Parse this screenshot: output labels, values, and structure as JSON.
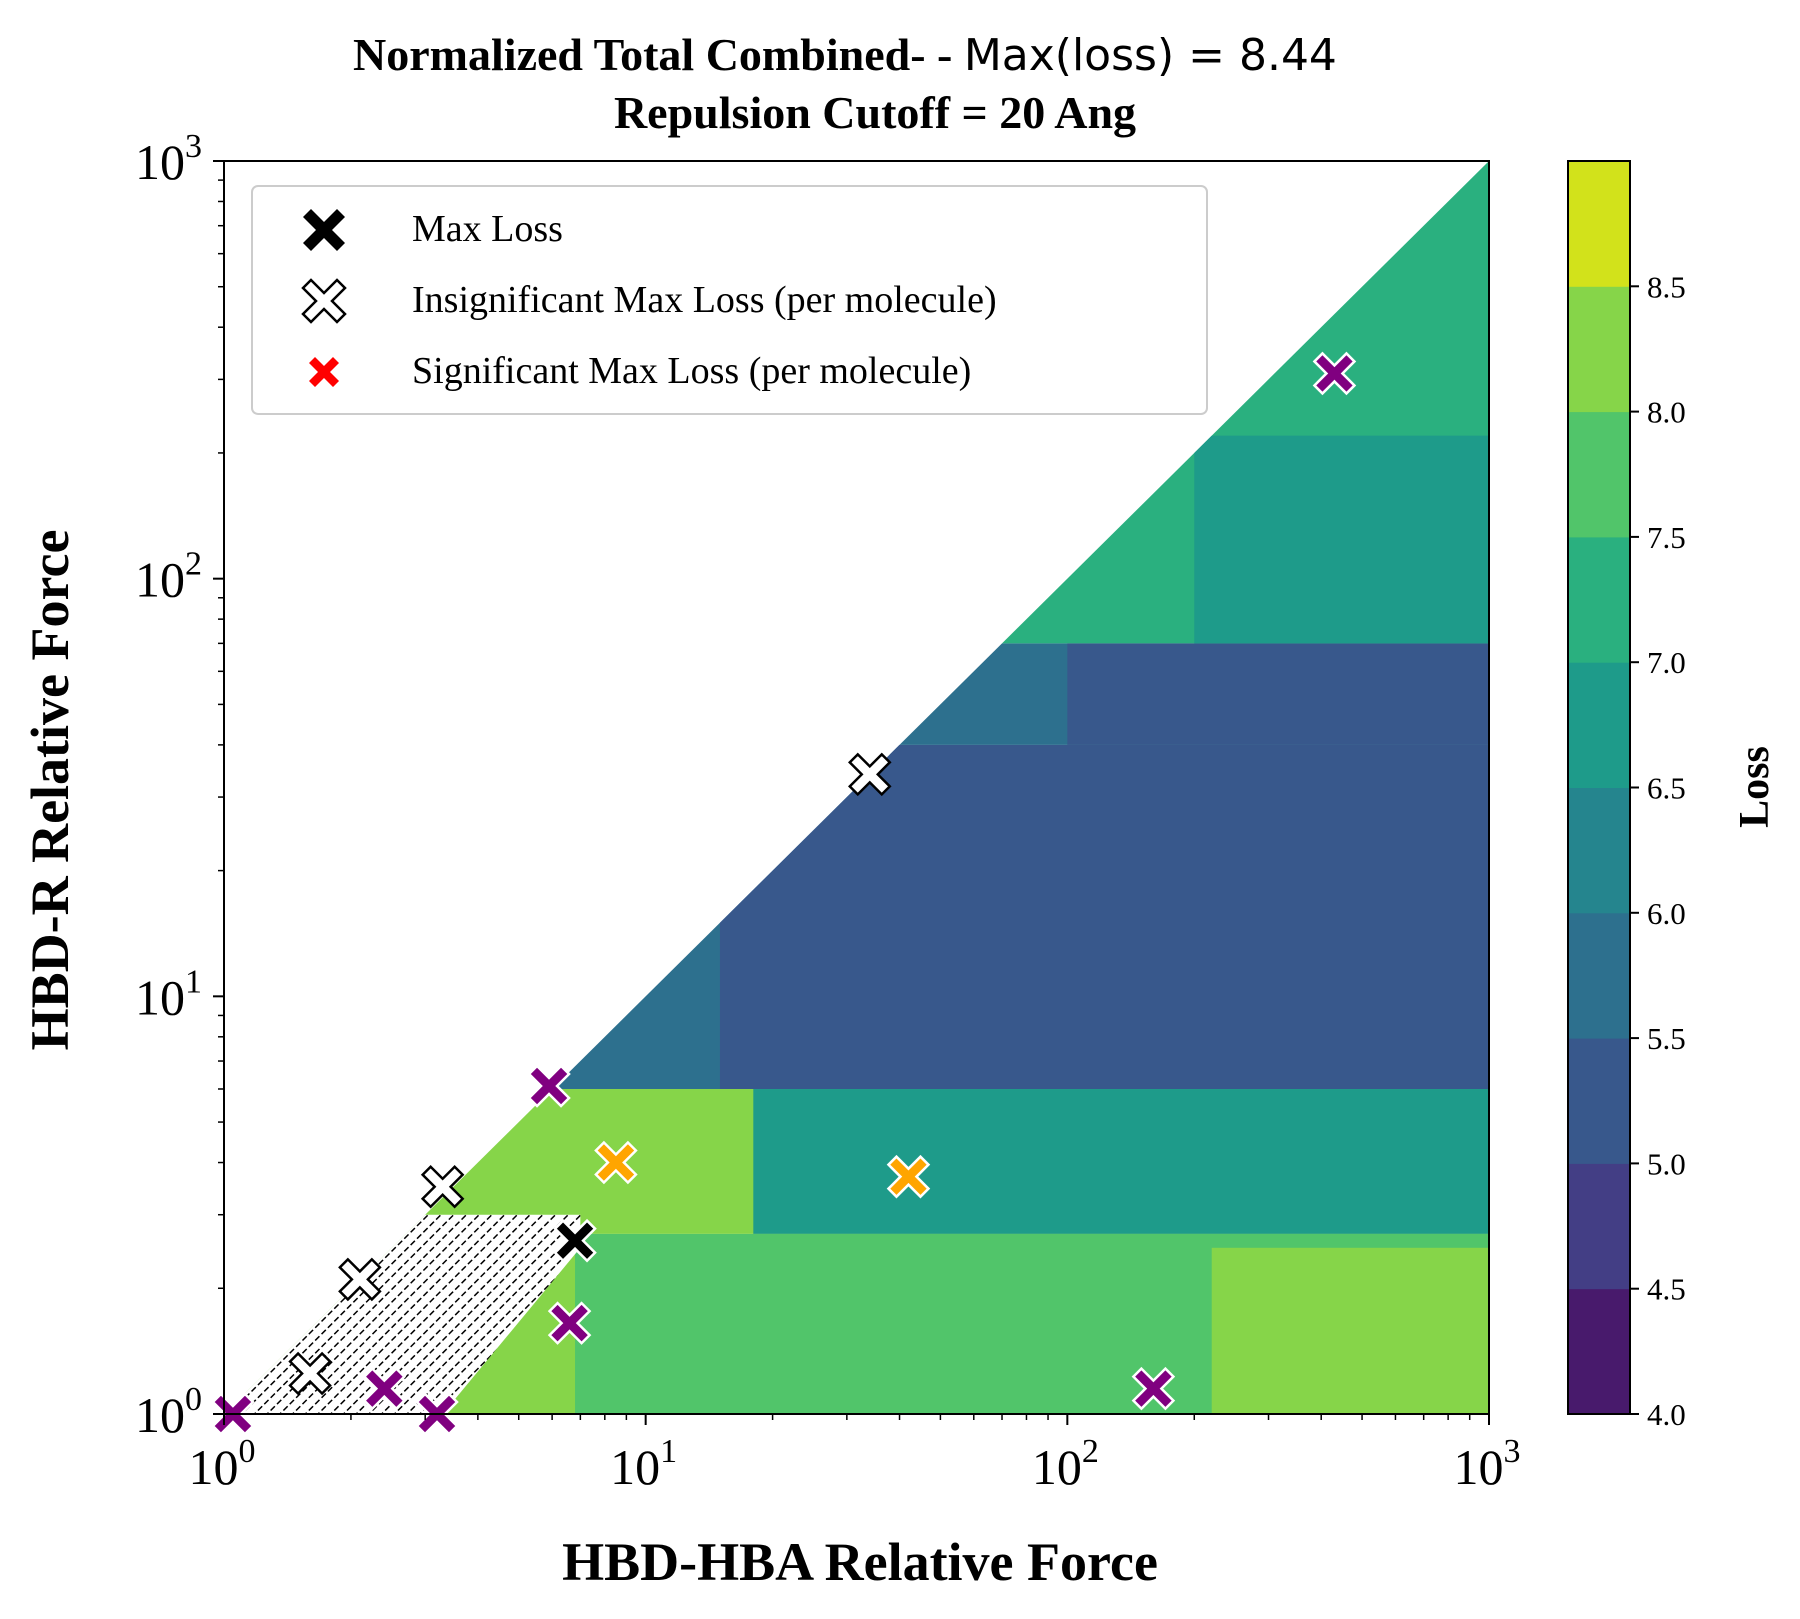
{
  "chart_data": {
    "type": "heatmap",
    "title": {
      "line1_text": "Normalized Total Combined- - ",
      "line1_math": "Max(loss) = 8.44",
      "line2": "Repulsion Cutoff = 20 Ang"
    },
    "xlabel": "HBD-HBA Relative Force",
    "ylabel": "HBD-R Relative Force",
    "xscale": "log",
    "yscale": "log",
    "xlim": [
      1,
      1000
    ],
    "ylim": [
      1,
      1000
    ],
    "x_tick_labels": [
      {
        "base": "10",
        "exp": "0"
      },
      {
        "base": "10",
        "exp": "1"
      },
      {
        "base": "10",
        "exp": "2"
      },
      {
        "base": "10",
        "exp": "3"
      }
    ],
    "y_tick_labels": [
      {
        "base": "10",
        "exp": "0"
      },
      {
        "base": "10",
        "exp": "1"
      },
      {
        "base": "10",
        "exp": "2"
      },
      {
        "base": "10",
        "exp": "3"
      }
    ],
    "colorbar": {
      "label": "Loss",
      "range": [
        4.0,
        8.5
      ],
      "ticks": [
        "4.0",
        "4.5",
        "5.0",
        "5.5",
        "6.0",
        "6.5",
        "7.0",
        "7.5",
        "8.0",
        "8.5"
      ],
      "level_colors": [
        "#481a6c",
        "#433e85",
        "#38588c",
        "#2d708e",
        "#25858e",
        "#1e9b8a",
        "#2ab07f",
        "#51c56a",
        "#86d549",
        "#d2e21b"
      ]
    },
    "contour_regions": [
      {
        "loss": 7.75,
        "x_from": 1,
        "y_from": 1,
        "y_to": 2.7
      },
      {
        "loss": 7.25,
        "x_from": 6.8,
        "y_from": 1,
        "y_to": 2.7
      },
      {
        "loss": 7.75,
        "x_from": 220,
        "y_from": 1,
        "y_to": 2.5
      },
      {
        "loss": 7.75,
        "x_from": 1,
        "y_from": 2.7,
        "y_to": 6
      },
      {
        "loss": 6.25,
        "x_from": 18,
        "y_from": 2.7,
        "y_to": 6
      },
      {
        "loss": 5.75,
        "x_from": 1,
        "y_from": 6,
        "y_to": 40
      },
      {
        "loss": 5.25,
        "x_from": 15,
        "y_from": 6,
        "y_to": 40
      },
      {
        "loss": 5.75,
        "x_from": 1,
        "y_from": 40,
        "y_to": 70
      },
      {
        "loss": 5.25,
        "x_from": 100,
        "y_from": 40,
        "y_to": 70
      },
      {
        "loss": 6.75,
        "x_from": 1,
        "y_from": 70,
        "y_to": 1000
      },
      {
        "loss": 6.25,
        "x_from": 200,
        "y_from": 70,
        "y_to": 220
      }
    ],
    "legend": {
      "placement": "top-left",
      "entries": [
        {
          "label": "Max Loss",
          "marker": "x-filled",
          "color": "#000000"
        },
        {
          "label": "Insignificant Max Loss (per molecule)",
          "marker": "x-filled",
          "color": "#ffffff"
        },
        {
          "label": "Significant Max Loss (per molecule)",
          "marker": "x-filled",
          "color": "#ff0000"
        }
      ]
    },
    "series": [
      {
        "name": "Max Loss",
        "color": "#000000",
        "points": [
          {
            "x": 6.8,
            "y": 2.6
          }
        ]
      },
      {
        "name": "Insignificant Max Loss (per molecule)",
        "color": "#ffffff",
        "points": [
          {
            "x": 34,
            "y": 34
          },
          {
            "x": 3.3,
            "y": 3.5
          },
          {
            "x": 2.1,
            "y": 2.1
          },
          {
            "x": 1.6,
            "y": 1.25
          }
        ]
      },
      {
        "color": "#800080",
        "points": [
          {
            "x": 430,
            "y": 310
          },
          {
            "x": 5.9,
            "y": 6.1
          },
          {
            "x": 6.6,
            "y": 1.65
          },
          {
            "x": 2.4,
            "y": 1.15
          },
          {
            "x": 3.2,
            "y": 1.0
          },
          {
            "x": 1.05,
            "y": 1.0
          },
          {
            "x": 160,
            "y": 1.15
          }
        ]
      },
      {
        "color": "#ffa500",
        "points": [
          {
            "x": 8.5,
            "y": 4.0
          },
          {
            "x": 42,
            "y": 3.7
          }
        ]
      }
    ]
  }
}
